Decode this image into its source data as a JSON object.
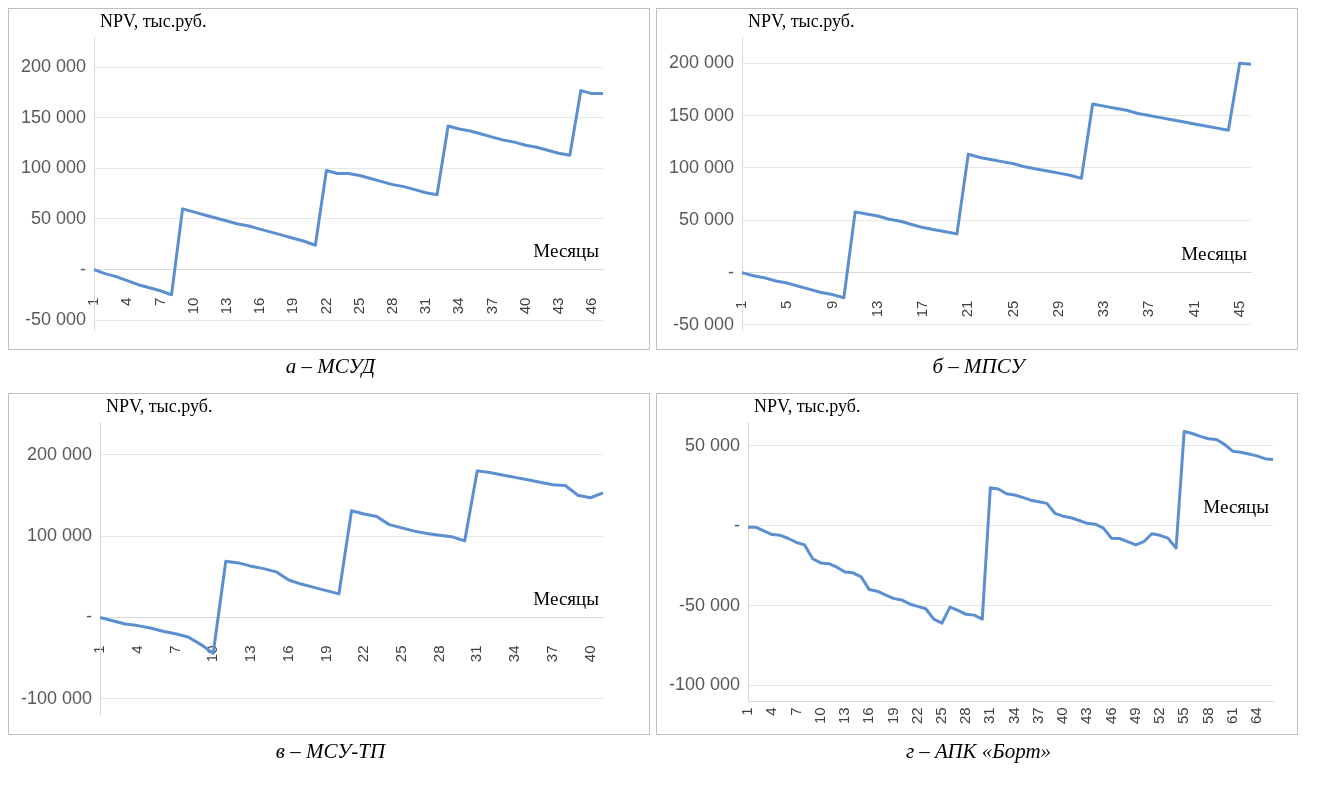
{
  "chart_data": [
    {
      "type": "line",
      "title": "а – МСУД",
      "xlabel": "Месяцы",
      "ylabel": "NPV, тыс.руб.",
      "color": "#5b8fcf",
      "grid": "y",
      "categories": [
        "1",
        null,
        null,
        "4",
        null,
        null,
        "7",
        null,
        null,
        "10",
        null,
        null,
        "13",
        null,
        null,
        "16",
        null,
        null,
        "19",
        null,
        null,
        "22",
        null,
        null,
        "25",
        null,
        null,
        "28",
        null,
        null,
        "31",
        null,
        null,
        "34",
        null,
        null,
        "37",
        null,
        null,
        "40",
        null,
        null,
        "43",
        null,
        null,
        "46",
        null
      ],
      "values": [
        0,
        -4000,
        -7000,
        -11000,
        -15000,
        -18000,
        -21000,
        -25000,
        60000,
        57000,
        54000,
        51000,
        48000,
        45000,
        43000,
        40000,
        37000,
        34000,
        31000,
        28000,
        24000,
        98000,
        95000,
        95000,
        93000,
        90000,
        87000,
        84000,
        82000,
        79000,
        76000,
        74000,
        142000,
        139000,
        137000,
        134000,
        131000,
        128000,
        126000,
        123000,
        121000,
        118000,
        115000,
        113000,
        177000,
        174000,
        174000
      ],
      "ylim": [
        -60000,
        230000
      ],
      "yticks": [
        {
          "value": -50000,
          "label": "-50 000"
        },
        {
          "value": 0,
          "label": "-"
        },
        {
          "value": 50000,
          "label": "50 000"
        },
        {
          "value": 100000,
          "label": "100 000"
        },
        {
          "value": 150000,
          "label": "150 000"
        },
        {
          "value": 200000,
          "label": "200 000"
        }
      ]
    },
    {
      "type": "line",
      "title": "б – МПСУ",
      "xlabel": "Месяцы",
      "ylabel": "NPV, тыс.руб.",
      "color": "#5b8fcf",
      "grid": "y",
      "categories": [
        "1",
        null,
        null,
        null,
        "5",
        null,
        null,
        null,
        "9",
        null,
        null,
        null,
        "13",
        null,
        null,
        null,
        "17",
        null,
        null,
        null,
        "21",
        null,
        null,
        null,
        "25",
        null,
        null,
        null,
        "29",
        null,
        null,
        null,
        "33",
        null,
        null,
        null,
        "37",
        null,
        null,
        null,
        "41",
        null,
        null,
        null,
        "45",
        null
      ],
      "values": [
        0,
        -3000,
        -5000,
        -8000,
        -10000,
        -13000,
        -16000,
        -19000,
        -21000,
        -24000,
        58000,
        56000,
        54000,
        51000,
        49000,
        46000,
        43000,
        41000,
        39000,
        37000,
        113000,
        110000,
        108000,
        106000,
        104000,
        101000,
        99000,
        97000,
        95000,
        93000,
        90000,
        161000,
        159000,
        157000,
        155000,
        152000,
        150000,
        148000,
        146000,
        144000,
        142000,
        140000,
        138000,
        136000,
        200000,
        199000
      ],
      "ylim": [
        -55000,
        225000
      ],
      "yticks": [
        {
          "value": -50000,
          "label": "-50 000"
        },
        {
          "value": 0,
          "label": "-"
        },
        {
          "value": 50000,
          "label": "50 000"
        },
        {
          "value": 100000,
          "label": "100 000"
        },
        {
          "value": 150000,
          "label": "150 000"
        },
        {
          "value": 200000,
          "label": "200 000"
        }
      ]
    },
    {
      "type": "line",
      "title": "в – МСУ-ТП",
      "xlabel": "Месяцы",
      "ylabel": "NPV, тыс.руб.",
      "color": "#5b8fcf",
      "grid": "y",
      "categories": [
        "1",
        null,
        null,
        "4",
        null,
        null,
        "7",
        null,
        null,
        "10",
        null,
        null,
        "13",
        null,
        null,
        "16",
        null,
        null,
        "19",
        null,
        null,
        "22",
        null,
        null,
        "25",
        null,
        null,
        "28",
        null,
        null,
        "31",
        null,
        null,
        "34",
        null,
        null,
        "37",
        null,
        null,
        "40",
        null
      ],
      "values": [
        0,
        -4000,
        -8000,
        -10000,
        -13000,
        -17000,
        -20000,
        -24000,
        -33000,
        -44000,
        69000,
        67000,
        63000,
        60000,
        56000,
        46000,
        41000,
        37000,
        33000,
        29000,
        131000,
        127000,
        124000,
        114000,
        110000,
        106000,
        103000,
        101000,
        99000,
        94000,
        180000,
        178000,
        175000,
        172000,
        169000,
        166000,
        163000,
        162000,
        150000,
        147000,
        153000
      ],
      "ylim": [
        -120000,
        240000
      ],
      "yticks": [
        {
          "value": -100000,
          "label": "-100 000"
        },
        {
          "value": 0,
          "label": "-"
        },
        {
          "value": 100000,
          "label": "100 000"
        },
        {
          "value": 200000,
          "label": "200 000"
        }
      ]
    },
    {
      "type": "line",
      "title": "г – АПК «Борт»",
      "xlabel": "Месяцы",
      "ylabel": "NPV, тыс.руб.",
      "color": "#5b8fcf",
      "grid": "y",
      "categories": [
        "1",
        null,
        null,
        "4",
        null,
        null,
        "7",
        null,
        null,
        "10",
        null,
        null,
        "13",
        null,
        null,
        "16",
        null,
        null,
        "19",
        null,
        null,
        "22",
        null,
        null,
        "25",
        null,
        null,
        "28",
        null,
        null,
        "31",
        null,
        null,
        "34",
        null,
        null,
        "37",
        null,
        null,
        "40",
        null,
        null,
        "43",
        null,
        null,
        "46",
        null,
        null,
        "49",
        null,
        null,
        "52",
        null,
        null,
        "55",
        null,
        null,
        "58",
        null,
        null,
        "61",
        null,
        null,
        "64",
        null,
        null
      ],
      "values": [
        -1000,
        -1000,
        -3300,
        -5500,
        -6000,
        -8000,
        -10500,
        -12000,
        -20700,
        -23300,
        -23800,
        -26000,
        -29000,
        -29500,
        -32000,
        -40000,
        -41000,
        -43300,
        -45500,
        -46500,
        -49000,
        -50500,
        -52000,
        -58500,
        -61000,
        -51000,
        -53000,
        -55500,
        -56000,
        -58500,
        23800,
        23000,
        20000,
        19300,
        17800,
        16000,
        15000,
        14000,
        7800,
        6000,
        5000,
        3300,
        1500,
        1000,
        -1500,
        -7800,
        -8000,
        -10000,
        -12000,
        -10000,
        -5000,
        -6000,
        -7800,
        -14000,
        59000,
        57800,
        56000,
        54500,
        54000,
        51000,
        46700,
        46000,
        45000,
        43800,
        42000,
        41500
      ],
      "ylim": [
        -110000,
        65000
      ],
      "yticks": [
        {
          "value": -100000,
          "label": "-100 000"
        },
        {
          "value": -50000,
          "label": "-50 000"
        },
        {
          "value": 0,
          "label": "-"
        },
        {
          "value": 50000,
          "label": "50 000"
        }
      ]
    }
  ]
}
